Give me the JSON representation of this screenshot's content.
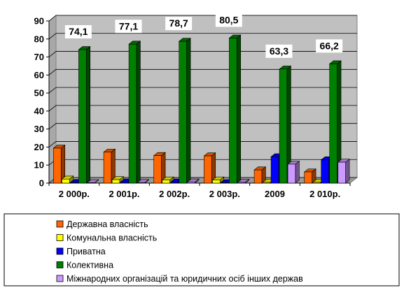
{
  "chart_data": {
    "type": "bar",
    "categories": [
      "2 000р.",
      "2 001р.",
      "2 002р.",
      "2 003р.",
      "2009",
      "2 010р."
    ],
    "series": [
      {
        "name": "Державна власність",
        "color": "#ff6600",
        "values": [
          19.4,
          17.2,
          15.3,
          15.1,
          7.3,
          6.2
        ]
      },
      {
        "name": "Комунальна власність",
        "color": "#ffff00",
        "values": [
          2.2,
          1.9,
          1.7,
          1.7,
          0.4,
          0.4
        ]
      },
      {
        "name": "Приватна",
        "color": "#0000ff",
        "values": [
          0.3,
          0.6,
          0.6,
          0.2,
          14.6,
          12.9
        ]
      },
      {
        "name": "Колективна",
        "color": "#008000",
        "values": [
          74.1,
          77.1,
          78.7,
          80.5,
          63.3,
          66.2
        ]
      },
      {
        "name": "Міжнародних організацій та юридичних осіб інших держав",
        "color": "#cc99ff",
        "values": [
          0.2,
          0.3,
          0.6,
          0.4,
          10.5,
          11.6
        ]
      }
    ],
    "data_labels": {
      "series": "Колективна",
      "labels": [
        "74,1",
        "77,1",
        "78,7",
        "80,5",
        "63,3",
        "66,2"
      ]
    },
    "y_ticks": [
      "0",
      "10",
      "20",
      "30",
      "40",
      "50",
      "60",
      "70",
      "80",
      "90"
    ],
    "ylim": [
      0,
      90
    ],
    "grid": true,
    "legend_position": "bottom",
    "title": "",
    "xlabel": "",
    "ylabel": ""
  }
}
